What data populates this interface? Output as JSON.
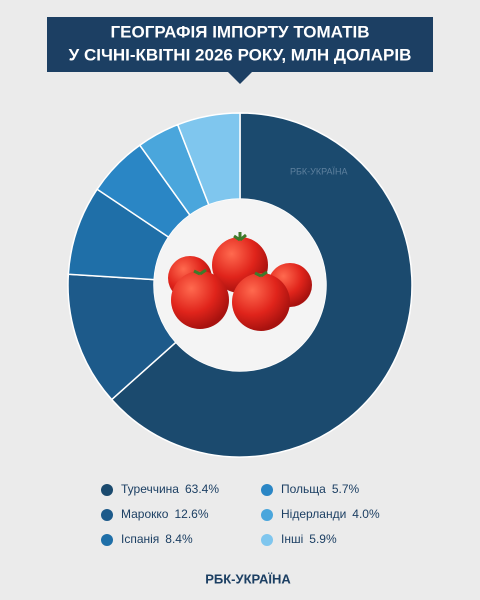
{
  "chart_data": {
    "type": "donut",
    "title": [
      "ГЕОГРАФІЯ ІМПОРТУ ТОМАТІВ",
      "У СІЧНІ-КВІТНІ 2026 РОКУ, МЛН ДОЛАРІВ"
    ],
    "categories": [
      "Туреччина",
      "Марокко",
      "Іспанія",
      "Польща",
      "Нідерланди",
      "Інші"
    ],
    "values": [
      63.4,
      12.6,
      8.4,
      5.7,
      4.0,
      5.9
    ],
    "value_labels": [
      "63.4%",
      "12.6%",
      "8.4%",
      "5.7%",
      "4.0%",
      "5.9%"
    ],
    "colors": [
      "#1b4a6e",
      "#1d5a8a",
      "#1f6fa8",
      "#2a86c5",
      "#4aa6dc",
      "#7fc6ee"
    ],
    "brand": "РБК-УКРАЇНА"
  }
}
